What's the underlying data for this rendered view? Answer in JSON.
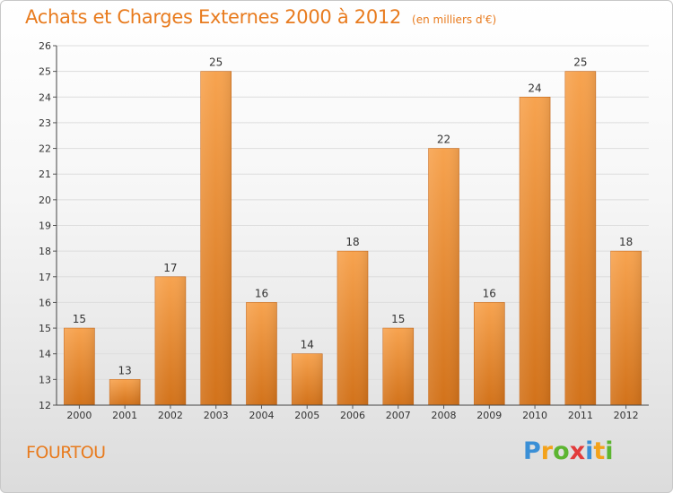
{
  "header": {
    "title": "Achats et Charges Externes 2000 à 2012",
    "subtitle": "(en milliers d'€)"
  },
  "commune": "FOURTOU",
  "logo": {
    "letters": [
      {
        "char": "P",
        "color": "#3a8fd6"
      },
      {
        "char": "r",
        "color": "#f3a21b"
      },
      {
        "char": "o",
        "color": "#5cb531"
      },
      {
        "char": "x",
        "color": "#e23b3b"
      },
      {
        "char": "i",
        "color": "#3a8fd6"
      },
      {
        "char": "t",
        "color": "#f3a21b"
      },
      {
        "char": "i",
        "color": "#5cb531"
      }
    ]
  },
  "chart_data": {
    "type": "bar",
    "title": "Achats et Charges Externes 2000 à 2012",
    "subtitle": "(en milliers d'€)",
    "categories": [
      "2000",
      "2001",
      "2002",
      "2003",
      "2004",
      "2005",
      "2006",
      "2007",
      "2008",
      "2009",
      "2010",
      "2011",
      "2012"
    ],
    "values": [
      15,
      13,
      17,
      25,
      16,
      14,
      18,
      15,
      22,
      16,
      24,
      25,
      18
    ],
    "ylim": [
      12,
      26
    ],
    "yticks": [
      12,
      13,
      14,
      15,
      16,
      17,
      18,
      19,
      20,
      21,
      22,
      23,
      24,
      25,
      26
    ],
    "grid": true,
    "bar_color_top": "#f7a34f",
    "bar_color_bottom": "#d2721a",
    "xlabel": "",
    "ylabel": ""
  }
}
